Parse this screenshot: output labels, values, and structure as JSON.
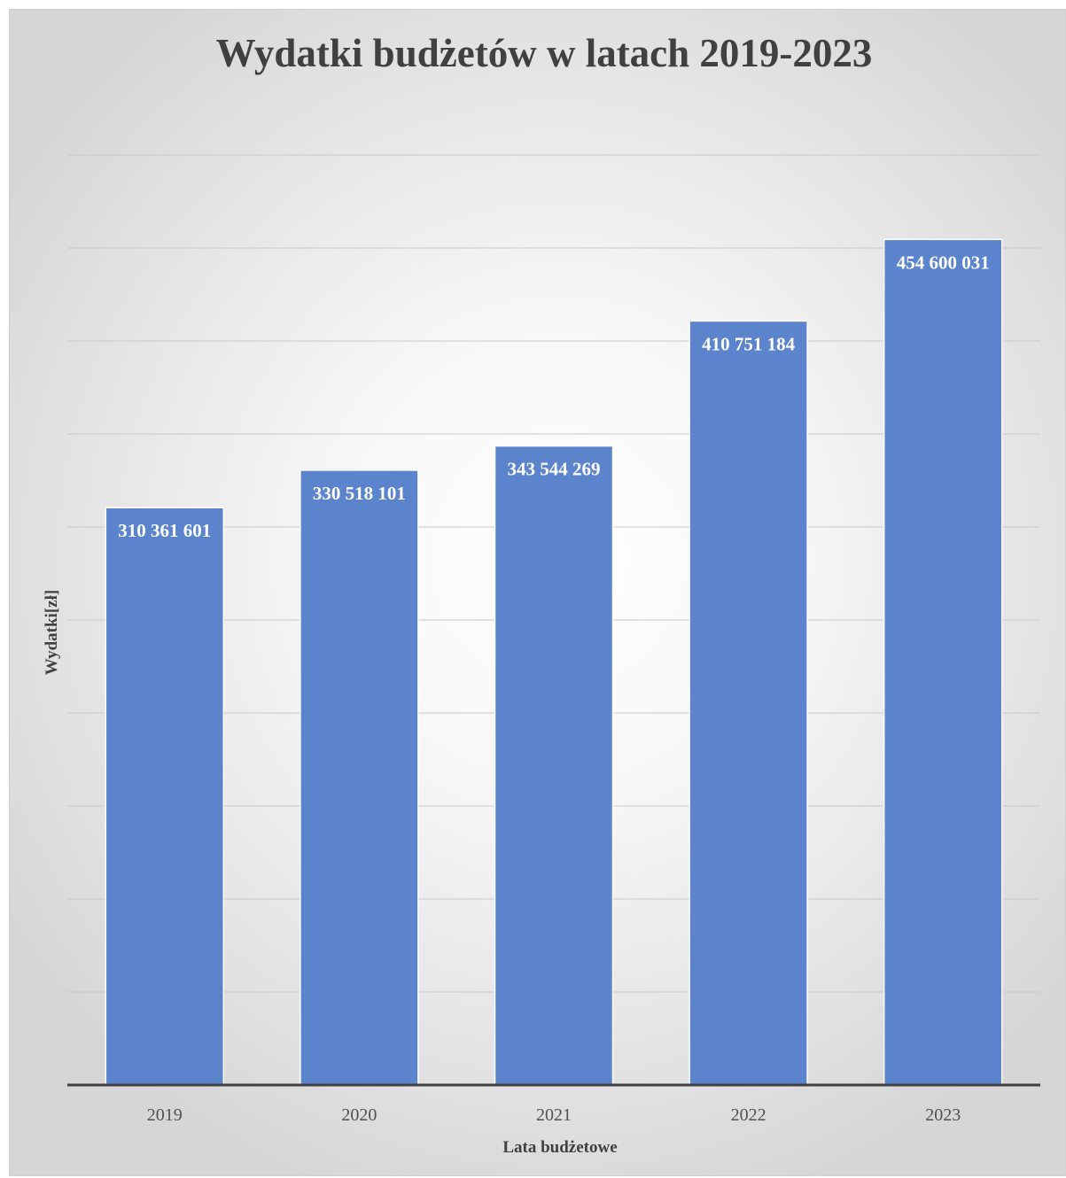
{
  "chart_data": {
    "type": "bar",
    "title": "Wydatki budżetów w latach 2019-2023",
    "xlabel": "Lata budżetowe",
    "ylabel": "Wydatki[zł]",
    "categories": [
      "2019",
      "2020",
      "2021",
      "2022",
      "2023"
    ],
    "values": [
      310361601,
      330518101,
      343544269,
      410751184,
      454600031
    ],
    "data_labels": [
      "310 361 601",
      "330 518 101",
      "343 544 269",
      "410 751 184",
      "454 600 031"
    ],
    "ylim": [
      0,
      500000000
    ],
    "y_tick_step": 50000000,
    "y_tick_labels_visible": false,
    "grid": true,
    "legend": "none",
    "bar_color": "#5b84cc"
  }
}
